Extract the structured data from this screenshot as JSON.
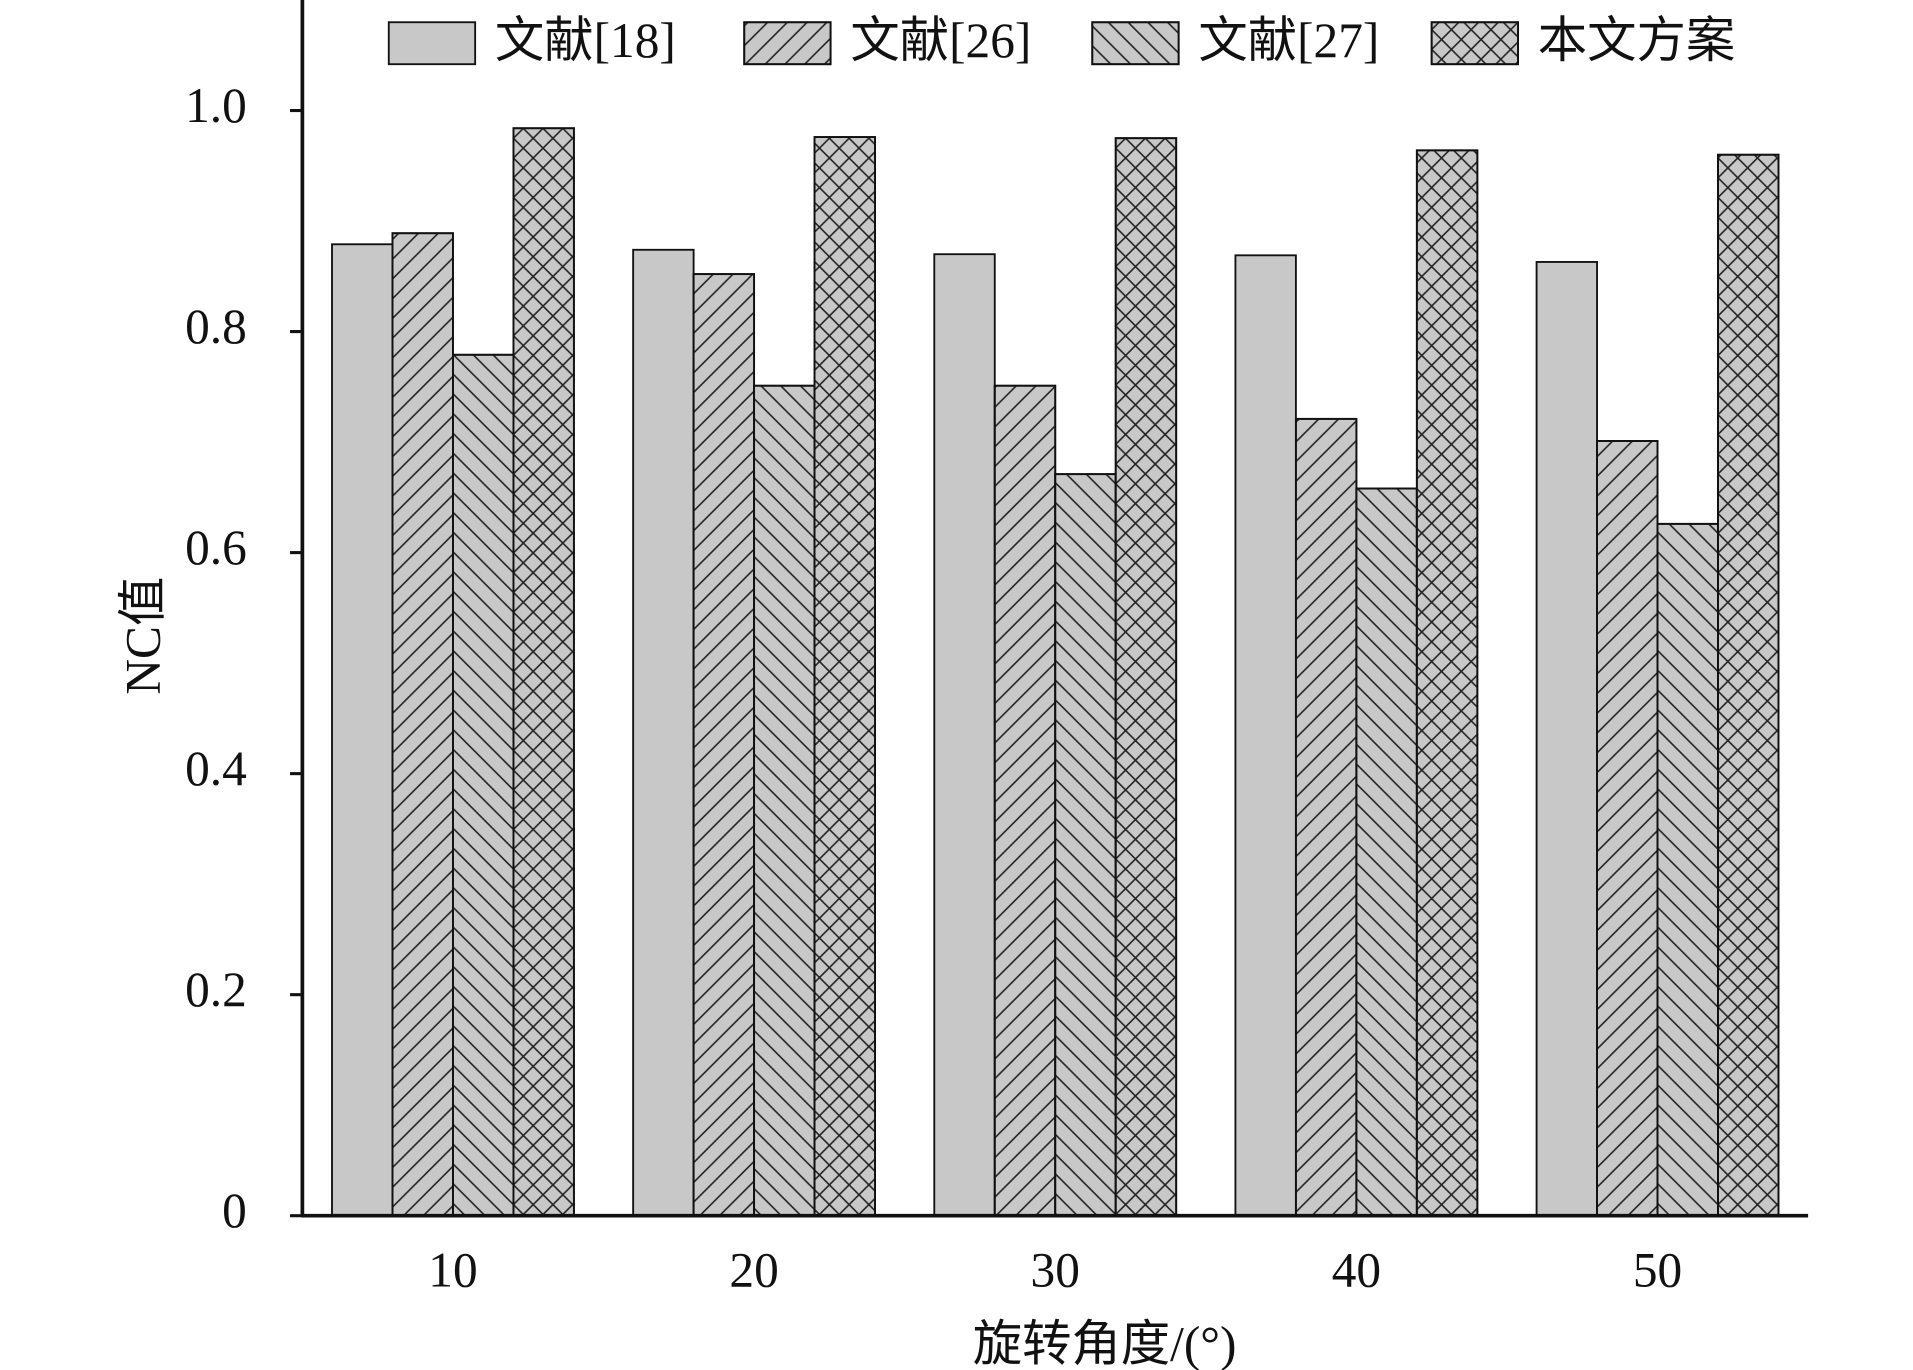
{
  "chart_data": {
    "type": "bar",
    "x_label": "旋转角度/(°)",
    "y_label": "NC值",
    "categories": [
      "10",
      "20",
      "30",
      "40",
      "50"
    ],
    "series": [
      {
        "name": "文献[18]",
        "color": "#c8c8c8",
        "hatch": "none",
        "values": [
          0.879,
          0.874,
          0.87,
          0.869,
          0.863
        ]
      },
      {
        "name": "文献[26]",
        "color": "#c8c8c8",
        "hatch": "/",
        "values": [
          0.889,
          0.852,
          0.751,
          0.721,
          0.701
        ]
      },
      {
        "name": "文献[27]",
        "color": "#c8c8c8",
        "hatch": "\\",
        "values": [
          0.779,
          0.751,
          0.671,
          0.658,
          0.626
        ]
      },
      {
        "name": "本文方案",
        "color": "#c8c8c8",
        "hatch": "x",
        "values": [
          0.984,
          0.976,
          0.975,
          0.964,
          0.96
        ]
      }
    ],
    "ylim": [
      0,
      1.1
    ],
    "yticks": [
      0,
      0.2,
      0.4,
      0.6,
      0.8,
      {
        "value": 1,
        "label": "1.0"
      }
    ],
    "legend": "top"
  }
}
